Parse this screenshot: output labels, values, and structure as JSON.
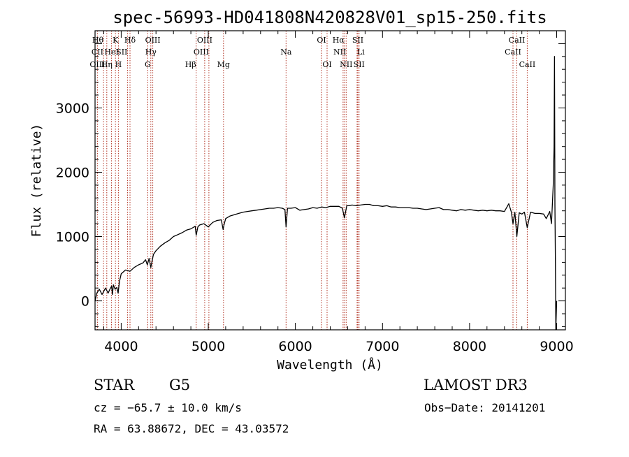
{
  "chart_data": {
    "type": "line",
    "title": "spec-56993-HD041808N420828V01_sp15-250.fits",
    "xlabel": "Wavelength (Å)",
    "ylabel": "Flux (relative)",
    "xlim": [
      3700,
      9100
    ],
    "ylim": [
      -450,
      4200
    ],
    "xticks": [
      4000,
      5000,
      6000,
      7000,
      8000,
      9000
    ],
    "yticks": [
      0,
      1000,
      2000,
      3000
    ],
    "series": [
      {
        "name": "flux",
        "x": [
          3700,
          3720,
          3750,
          3780,
          3800,
          3820,
          3850,
          3870,
          3890,
          3900,
          3910,
          3930,
          3950,
          3965,
          3980,
          4000,
          4050,
          4101,
          4150,
          4200,
          4250,
          4280,
          4300,
          4320,
          4340,
          4370,
          4400,
          4450,
          4500,
          4550,
          4600,
          4650,
          4700,
          4750,
          4800,
          4850,
          4861,
          4880,
          4900,
          4950,
          5000,
          5050,
          5100,
          5150,
          5170,
          5180,
          5200,
          5250,
          5300,
          5350,
          5400,
          5450,
          5500,
          5550,
          5600,
          5650,
          5700,
          5750,
          5800,
          5850,
          5880,
          5893,
          5910,
          5950,
          6000,
          6050,
          6100,
          6150,
          6200,
          6250,
          6300,
          6350,
          6400,
          6450,
          6500,
          6540,
          6563,
          6590,
          6620,
          6650,
          6700,
          6750,
          6800,
          6850,
          6900,
          6950,
          7000,
          7050,
          7100,
          7150,
          7200,
          7250,
          7300,
          7350,
          7400,
          7450,
          7500,
          7550,
          7600,
          7650,
          7700,
          7750,
          7800,
          7850,
          7900,
          7950,
          8000,
          8050,
          8100,
          8150,
          8200,
          8250,
          8300,
          8350,
          8400,
          8450,
          8480,
          8498,
          8520,
          8542,
          8570,
          8600,
          8630,
          8662,
          8700,
          8750,
          8800,
          8850,
          8880,
          8920,
          8940,
          8960,
          8970,
          8975,
          8980,
          8985,
          8990,
          9000
        ],
        "y": [
          0,
          120,
          180,
          100,
          150,
          200,
          120,
          180,
          230,
          100,
          250,
          180,
          210,
          120,
          300,
          420,
          480,
          460,
          520,
          560,
          590,
          640,
          560,
          660,
          520,
          720,
          780,
          850,
          900,
          940,
          1000,
          1030,
          1060,
          1100,
          1120,
          1160,
          1020,
          1150,
          1180,
          1200,
          1150,
          1220,
          1250,
          1260,
          1110,
          1180,
          1280,
          1320,
          1340,
          1360,
          1380,
          1390,
          1400,
          1410,
          1420,
          1430,
          1440,
          1440,
          1450,
          1440,
          1420,
          1150,
          1440,
          1440,
          1450,
          1410,
          1420,
          1430,
          1450,
          1440,
          1460,
          1450,
          1470,
          1470,
          1470,
          1440,
          1290,
          1480,
          1480,
          1490,
          1480,
          1490,
          1500,
          1500,
          1480,
          1480,
          1470,
          1480,
          1460,
          1460,
          1450,
          1450,
          1450,
          1440,
          1440,
          1430,
          1420,
          1430,
          1440,
          1450,
          1420,
          1420,
          1410,
          1400,
          1420,
          1410,
          1420,
          1410,
          1400,
          1410,
          1400,
          1410,
          1400,
          1400,
          1390,
          1510,
          1380,
          1200,
          1380,
          1000,
          1370,
          1350,
          1380,
          1140,
          1380,
          1360,
          1360,
          1350,
          1280,
          1390,
          1200,
          1800,
          2400,
          3800,
          1500,
          600,
          -450,
          0
        ]
      }
    ],
    "spectral_lines": [
      {
        "label": "Hθ",
        "wavelength": 3797,
        "row": 0,
        "anchor": "end"
      },
      {
        "label": "K",
        "wavelength": 3934,
        "row": 0,
        "anchor": "middle"
      },
      {
        "label": "Hδ",
        "wavelength": 4101,
        "row": 0,
        "anchor": "middle"
      },
      {
        "label": "OIII",
        "wavelength": 4363,
        "row": 0,
        "anchor": "middle"
      },
      {
        "label": "OIII",
        "wavelength": 4959,
        "row": 0,
        "anchor": "middle"
      },
      {
        "label": "OI",
        "wavelength": 6300,
        "row": 0,
        "anchor": "middle"
      },
      {
        "label": "Hα",
        "wavelength": 6563,
        "row": 0,
        "anchor": "end"
      },
      {
        "label": "SII",
        "wavelength": 6717,
        "row": 0,
        "anchor": "middle"
      },
      {
        "label": "CaII",
        "wavelength": 8542,
        "row": 0,
        "anchor": "middle"
      },
      {
        "label": "CII",
        "wavelength": 3727,
        "row": 1,
        "anchor": "middle"
      },
      {
        "label": "HeI",
        "wavelength": 3889,
        "row": 1,
        "anchor": "middle"
      },
      {
        "label": "SII",
        "wavelength": 4072,
        "row": 1,
        "anchor": "end"
      },
      {
        "label": "Hγ",
        "wavelength": 4340,
        "row": 1,
        "anchor": "middle"
      },
      {
        "label": "OIII",
        "wavelength": 5007,
        "row": 1,
        "anchor": "end"
      },
      {
        "label": "Na",
        "wavelength": 5893,
        "row": 1,
        "anchor": "middle"
      },
      {
        "label": "NII",
        "wavelength": 6583,
        "row": 1,
        "anchor": "end"
      },
      {
        "label": "Li",
        "wavelength": 6708,
        "row": 1,
        "anchor": "start"
      },
      {
        "label": "CaII",
        "wavelength": 8498,
        "row": 1,
        "anchor": "middle"
      },
      {
        "label": "OIII",
        "wavelength": 3727,
        "row": 2,
        "anchor": "middle"
      },
      {
        "label": "Hη",
        "wavelength": 3835,
        "row": 2,
        "anchor": "middle"
      },
      {
        "label": "H",
        "wavelength": 3968,
        "row": 2,
        "anchor": "middle"
      },
      {
        "label": "G",
        "wavelength": 4305,
        "row": 2,
        "anchor": "middle"
      },
      {
        "label": "Hβ",
        "wavelength": 4861,
        "row": 2,
        "anchor": "end"
      },
      {
        "label": "Mg",
        "wavelength": 5175,
        "row": 2,
        "anchor": "middle"
      },
      {
        "label": "OI",
        "wavelength": 6364,
        "row": 2,
        "anchor": "middle"
      },
      {
        "label": "NII",
        "wavelength": 6583,
        "row": 2,
        "anchor": "middle"
      },
      {
        "label": "SII",
        "wavelength": 6731,
        "row": 2,
        "anchor": "middle"
      },
      {
        "label": "CaII",
        "wavelength": 8662,
        "row": 2,
        "anchor": "middle"
      }
    ],
    "marker_lines": [
      3727,
      3797,
      3835,
      3889,
      3934,
      3968,
      4072,
      4101,
      4305,
      4340,
      4363,
      4861,
      4959,
      5007,
      5175,
      5893,
      6300,
      6364,
      6548,
      6563,
      6583,
      6708,
      6717,
      6731,
      8498,
      8542,
      8662
    ]
  },
  "info": {
    "object_class": "STAR",
    "subclass": "G5",
    "survey": "LAMOST DR3",
    "redshift": "cz = −65.7 ± 10.0 km/s",
    "obs_date": "Obs−Date: 20141201",
    "coords": "RA =  63.88672, DEC =  43.03572"
  },
  "colors": {
    "marker_line": "#b03020",
    "spectrum": "#000000",
    "axes": "#000000"
  }
}
